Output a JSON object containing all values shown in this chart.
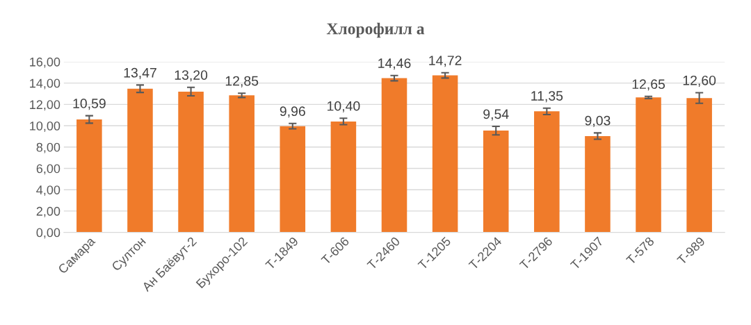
{
  "chart_data": {
    "type": "bar",
    "title": "Хлорофилл а",
    "categories": [
      "Самара",
      "Султон",
      "Ан Баёвут-2",
      "Бухоро-102",
      "Т-1849",
      "Т-606",
      "Т-2460",
      "Т-1205",
      "Т-2204",
      "Т-2796",
      "Т-1907",
      "Т-578",
      "Т-989"
    ],
    "values": [
      10.59,
      13.47,
      13.2,
      12.85,
      9.96,
      10.4,
      14.46,
      14.72,
      9.54,
      11.35,
      9.03,
      12.65,
      12.6
    ],
    "value_labels": [
      "10,59",
      "13,47",
      "13,20",
      "12,85",
      "9,96",
      "10,40",
      "14,46",
      "14,72",
      "9,54",
      "11,35",
      "9,03",
      "12,65",
      "12,60"
    ],
    "errors": [
      0.35,
      0.35,
      0.4,
      0.2,
      0.25,
      0.3,
      0.25,
      0.25,
      0.4,
      0.3,
      0.3,
      0.1,
      0.5
    ],
    "color": "#f07b2a",
    "ylim": [
      0,
      16
    ],
    "yticks": [
      {
        "value": 0,
        "label": "0,00"
      },
      {
        "value": 2,
        "label": "2,00"
      },
      {
        "value": 4,
        "label": "4,00"
      },
      {
        "value": 6,
        "label": "6,00"
      },
      {
        "value": 8,
        "label": "8,00"
      },
      {
        "value": 10,
        "label": "10,00"
      },
      {
        "value": 12,
        "label": "12,00"
      },
      {
        "value": 14,
        "label": "14,00"
      },
      {
        "value": 16,
        "label": "16,00"
      }
    ],
    "grid": "y",
    "legend": false
  }
}
